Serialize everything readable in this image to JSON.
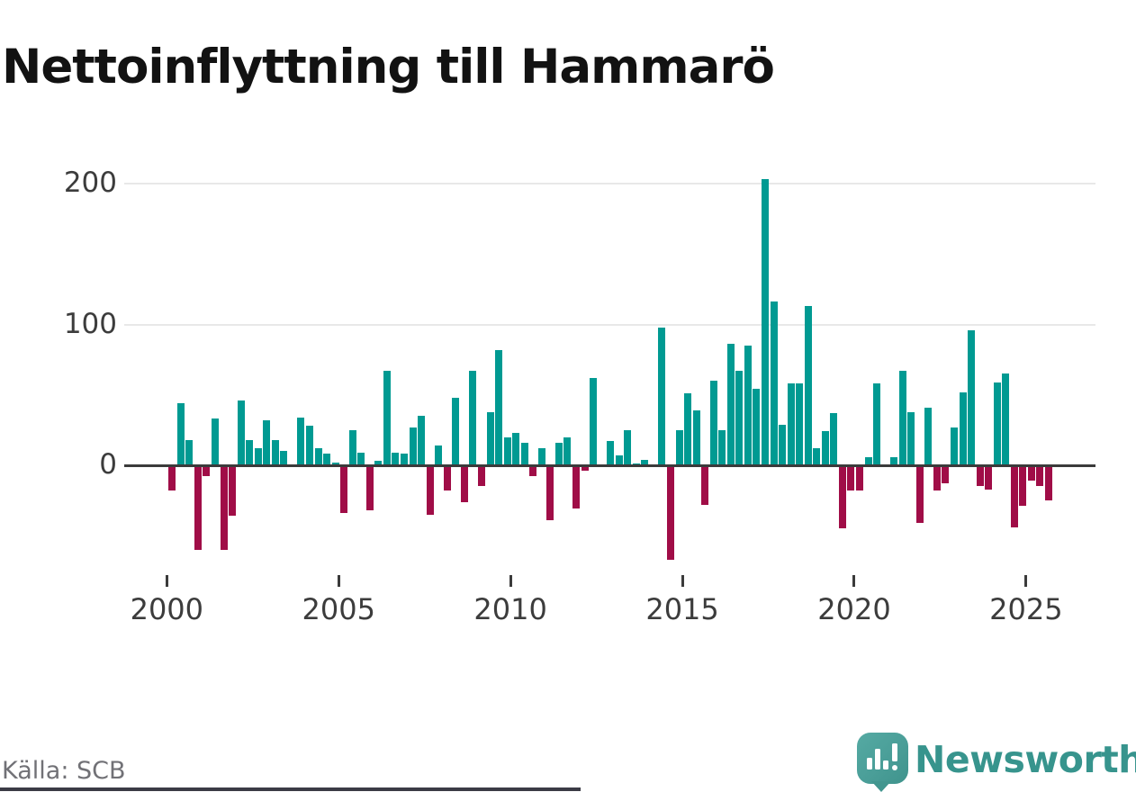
{
  "page": {
    "title": "Nettoinflyttning till Hammarö",
    "source_label": "Källa: SCB",
    "brand": "Newsworthy"
  },
  "chart_data": {
    "type": "bar",
    "title": "Nettoinflyttning till Hammarö",
    "xlabel": "",
    "ylabel": "",
    "x_tick_labels": [
      "2000",
      "2005",
      "2010",
      "2015",
      "2020",
      "2025"
    ],
    "x_tick_years": [
      2000,
      2005,
      2010,
      2015,
      2020,
      2025
    ],
    "y_ticks": [
      0,
      100,
      200
    ],
    "ylim": [
      -75,
      215
    ],
    "grid": "horizontal-only",
    "legend": "none",
    "positive_color": "#009a92",
    "negative_color": "#a00d47",
    "source": "Källa: SCB",
    "quarters": [
      "2000Q1",
      "2000Q2",
      "2000Q3",
      "2000Q4",
      "2001Q1",
      "2001Q2",
      "2001Q3",
      "2001Q4",
      "2002Q1",
      "2002Q2",
      "2002Q3",
      "2002Q4",
      "2003Q1",
      "2003Q2",
      "2003Q3",
      "2003Q4",
      "2004Q1",
      "2004Q2",
      "2004Q3",
      "2004Q4",
      "2005Q1",
      "2005Q2",
      "2005Q3",
      "2005Q4",
      "2006Q1",
      "2006Q2",
      "2006Q3",
      "2006Q4",
      "2007Q1",
      "2007Q2",
      "2007Q3",
      "2007Q4",
      "2008Q1",
      "2008Q2",
      "2008Q3",
      "2008Q4",
      "2009Q1",
      "2009Q2",
      "2009Q3",
      "2009Q4",
      "2010Q1",
      "2010Q2",
      "2010Q3",
      "2010Q4",
      "2011Q1",
      "2011Q2",
      "2011Q3",
      "2011Q4",
      "2012Q1",
      "2012Q2",
      "2012Q3",
      "2012Q4",
      "2013Q1",
      "2013Q2",
      "2013Q3",
      "2013Q4",
      "2014Q1",
      "2014Q2",
      "2014Q3",
      "2014Q4",
      "2015Q1",
      "2015Q2",
      "2015Q3",
      "2015Q4",
      "2016Q1",
      "2016Q2",
      "2016Q3",
      "2016Q4",
      "2017Q1",
      "2017Q2",
      "2017Q3",
      "2017Q4",
      "2018Q1",
      "2018Q2",
      "2018Q3",
      "2018Q4",
      "2019Q1",
      "2019Q2",
      "2019Q3",
      "2019Q4",
      "2020Q1",
      "2020Q2",
      "2020Q3",
      "2020Q4",
      "2021Q1",
      "2021Q2",
      "2021Q3",
      "2021Q4",
      "2022Q1",
      "2022Q2",
      "2022Q3",
      "2022Q4",
      "2023Q1",
      "2023Q2",
      "2023Q3",
      "2023Q4",
      "2024Q1",
      "2024Q2",
      "2024Q3",
      "2024Q4",
      "2025Q1",
      "2025Q2",
      "2025Q3"
    ],
    "values": [
      -17,
      44,
      18,
      -59,
      -7,
      33,
      -59,
      -35,
      46,
      18,
      12,
      32,
      18,
      10,
      0,
      34,
      28,
      12,
      8,
      2,
      -33,
      25,
      9,
      -31,
      3,
      67,
      9,
      8,
      27,
      35,
      -34,
      14,
      -17,
      48,
      -25,
      67,
      -14,
      38,
      82,
      20,
      23,
      16,
      -7,
      12,
      -38,
      16,
      20,
      -30,
      -3,
      62,
      0,
      17,
      7,
      25,
      1,
      4,
      0,
      98,
      -66,
      25,
      51,
      39,
      -27,
      60,
      25,
      86,
      67,
      85,
      54,
      203,
      116,
      29,
      58,
      58,
      113,
      12,
      24,
      37,
      -44,
      -17,
      -17,
      6,
      58,
      0,
      6,
      67,
      38,
      -40,
      41,
      -17,
      -12,
      27,
      52,
      96,
      -14,
      -16,
      59,
      65,
      -43,
      -28,
      -10,
      -14,
      -24
    ]
  }
}
